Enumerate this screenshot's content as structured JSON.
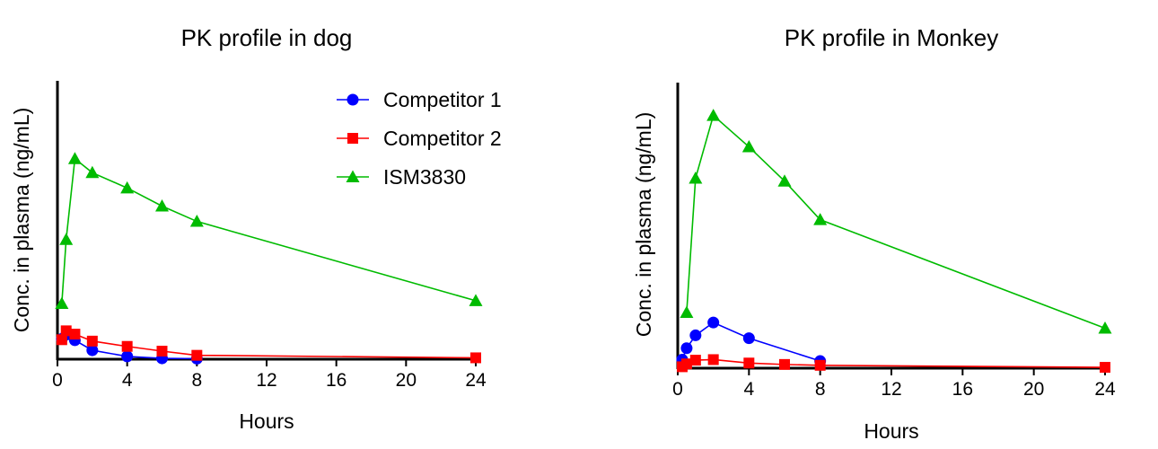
{
  "colors": {
    "Competitor 1": "#0000ff",
    "Competitor 2": "#ff0000",
    "ISM3830": "#00bb00"
  },
  "chart_data": [
    {
      "type": "line",
      "title": "PK profile in dog",
      "xlabel": "Hours",
      "ylabel": "Conc. in plasma (ng/mL)",
      "xlim": [
        0,
        24
      ],
      "xticks": [
        0,
        4,
        8,
        12,
        16,
        20,
        24
      ],
      "ylim": [
        0,
        100
      ],
      "y_tick_labels_shown": false,
      "legend": "top-right",
      "series": [
        {
          "name": "Competitor 1",
          "marker": "circle",
          "color": "#0000ff",
          "x": [
            0.25,
            0.5,
            1,
            2,
            4,
            6,
            8
          ],
          "y": [
            7.3,
            8.8,
            6.8,
            3.2,
            1.0,
            0.3,
            0.2
          ]
        },
        {
          "name": "Competitor 2",
          "marker": "square",
          "color": "#ff0000",
          "x": [
            0.25,
            0.5,
            1,
            2,
            4,
            6,
            8,
            24
          ],
          "y": [
            7.0,
            10.2,
            9.0,
            6.5,
            4.6,
            2.9,
            1.4,
            0.5
          ]
        },
        {
          "name": "ISM3830",
          "marker": "triangle",
          "color": "#00bb00",
          "x": [
            0.25,
            0.5,
            1,
            2,
            4,
            6,
            8,
            24
          ],
          "y": [
            20,
            43,
            72,
            67,
            61.5,
            55,
            49.5,
            21
          ]
        }
      ]
    },
    {
      "type": "line",
      "title": "PK profile in Monkey",
      "xlabel": "Hours",
      "ylabel": "Conc. in plasma (ng/mL)",
      "xlim": [
        0,
        24
      ],
      "xticks": [
        0,
        4,
        8,
        12,
        16,
        20,
        24
      ],
      "ylim": [
        0,
        100
      ],
      "y_tick_labels_shown": false,
      "legend": "none",
      "series": [
        {
          "name": "Competitor 1",
          "marker": "circle",
          "color": "#0000ff",
          "x": [
            0.25,
            0.5,
            1,
            2,
            4,
            8
          ],
          "y": [
            3.0,
            7.0,
            11.5,
            16.0,
            10.5,
            2.5
          ]
        },
        {
          "name": "Competitor 2",
          "marker": "square",
          "color": "#ff0000",
          "x": [
            0.25,
            0.5,
            1,
            2,
            4,
            6,
            8,
            24
          ],
          "y": [
            0.5,
            1.5,
            2.8,
            3.0,
            1.8,
            1.3,
            1.0,
            0.3
          ]
        },
        {
          "name": "ISM3830",
          "marker": "triangle",
          "color": "#00bb00",
          "x": [
            0.5,
            1,
            2,
            4,
            6,
            8,
            24
          ],
          "y": [
            19.5,
            66.5,
            88.5,
            77.5,
            65.5,
            52,
            14
          ]
        }
      ]
    }
  ]
}
